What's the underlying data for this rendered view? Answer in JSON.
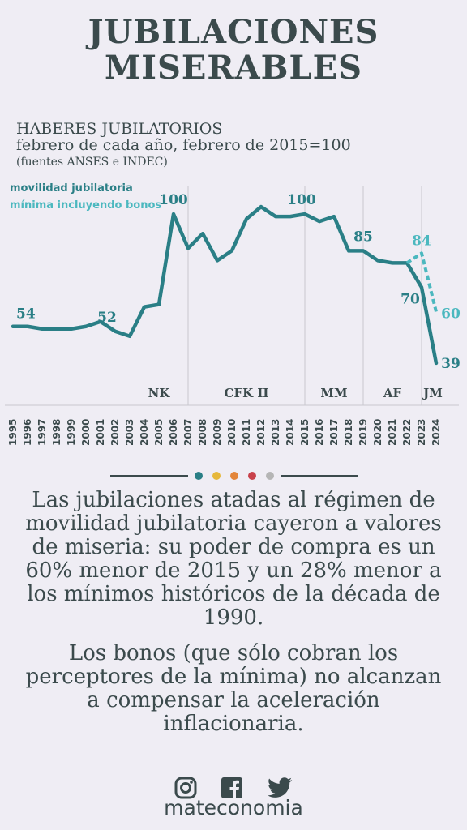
{
  "header": {
    "title_line1": "JUBILACIONES",
    "title_line2": "MISERABLES"
  },
  "subtitle": {
    "line1": "HABERES JUBILATORIOS",
    "line2": "febrero de cada año, febrero de 2015=100",
    "source": "(fuentes ANSES e INDEC)"
  },
  "colors": {
    "main": "#2a7f86",
    "bonus": "#4bb8bf",
    "text": "#3b4a4c",
    "dot_colors": [
      "#2a7f86",
      "#e6b83b",
      "#e3853a",
      "#c8414b",
      "#b5b5b5"
    ]
  },
  "chart_data": {
    "type": "line",
    "x": [
      1995,
      1996,
      1997,
      1998,
      1999,
      2000,
      2001,
      2002,
      2003,
      2004,
      2005,
      2006,
      2007,
      2008,
      2009,
      2010,
      2011,
      2012,
      2013,
      2014,
      2015,
      2016,
      2017,
      2018,
      2019,
      2020,
      2021,
      2022,
      2023,
      2024
    ],
    "series": [
      {
        "name": "movilidad jubilatoria",
        "values": [
          54,
          54,
          53,
          53,
          53,
          54,
          56,
          52,
          50,
          62,
          63,
          100,
          86,
          92,
          81,
          85,
          98,
          103,
          99,
          99,
          100,
          97,
          99,
          85,
          85,
          81,
          80,
          80,
          70,
          39
        ]
      },
      {
        "name": "mínima incluyendo bonos",
        "x": [
          2022,
          2023,
          2024
        ],
        "values": [
          80,
          84,
          60
        ]
      }
    ],
    "labels": [
      {
        "x": 1995,
        "text": "54"
      },
      {
        "x": 2002,
        "text": "52"
      },
      {
        "x": 2006,
        "text": "100"
      },
      {
        "x": 2015,
        "text": "100"
      },
      {
        "x": 2019,
        "text": "85"
      },
      {
        "x": 2023,
        "text": "70"
      },
      {
        "x": 2023,
        "text": "84",
        "series": "bonus"
      },
      {
        "x": 2024,
        "text": "60",
        "series": "bonus"
      },
      {
        "x": 2024,
        "text": "39"
      }
    ],
    "periods": [
      {
        "label": "NK",
        "start": 2003,
        "end": 2007
      },
      {
        "label": "CFK II",
        "start": 2007,
        "end": 2015
      },
      {
        "label": "MM",
        "start": 2015,
        "end": 2019
      },
      {
        "label": "AF",
        "start": 2019,
        "end": 2023
      },
      {
        "label": "JM",
        "start": 2023,
        "end": 2024
      }
    ],
    "ylim": [
      35,
      108
    ],
    "xlabel": "",
    "ylabel": ""
  },
  "legend": {
    "main": "movilidad jubilatoria",
    "bonus": "mínima incluyendo bonos"
  },
  "body": {
    "paragraph1": "Las jubilaciones atadas al régimen de movilidad jubilatoria cayeron a valores de miseria: su poder de compra es un 60% menor de 2015 y un 28% menor a los mínimos históricos de la década de 1990.",
    "paragraph2": "Los bonos (que sólo cobran los perceptores de la mínima) no alcanzan a compensar la aceleración inflacionaria."
  },
  "footer": {
    "brand": "mateconomia",
    "icons": [
      "instagram-icon",
      "facebook-icon",
      "twitter-icon"
    ]
  }
}
